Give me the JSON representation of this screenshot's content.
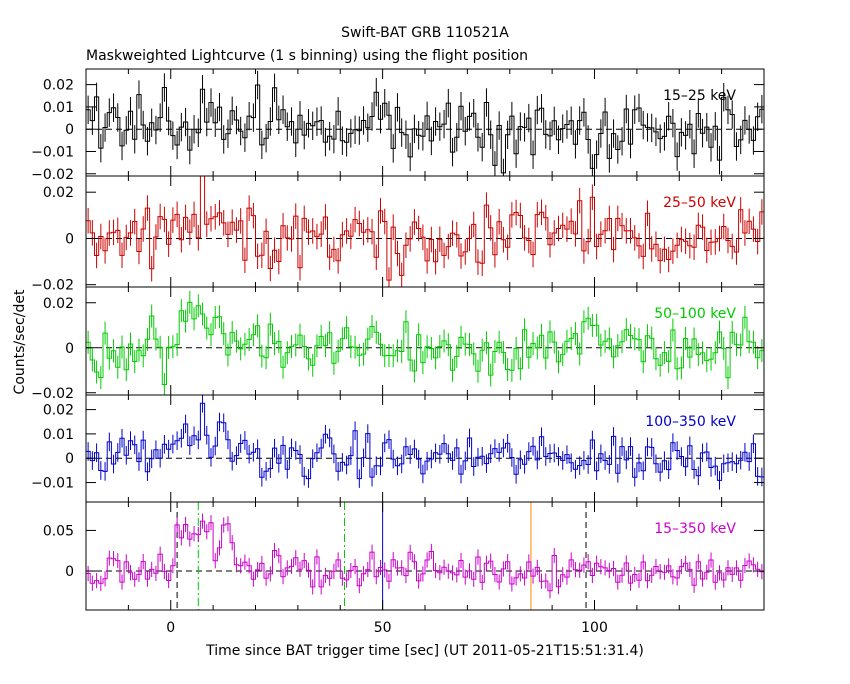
{
  "title": "Swift-BAT GRB 110521A",
  "subtitle": "Maskweighted Lightcurve (1 s binning) using the flight position",
  "ylabel": "Counts/sec/det",
  "xlabel": "Time since BAT trigger time [sec] (UT 2011-05-21T15:51:31.4)",
  "colors": {
    "frame": "#000000",
    "band1": "#000000",
    "band2": "#cc0000",
    "band3": "#00cc00",
    "band4": "#0000cc",
    "band5": "#cc00cc",
    "t90": "#00cc00",
    "t50": "#0000cc",
    "t100": "#ff8800"
  },
  "chart_data": {
    "type": "line",
    "x_range": [
      -20,
      140
    ],
    "x_ticks": [
      0,
      50,
      100
    ],
    "x_tick_labels": [
      "0",
      "50",
      "100"
    ],
    "binning_sec": 1,
    "panels": [
      {
        "name": "15-25 keV",
        "label": "15–25 keV",
        "color": "#000000",
        "ylim": [
          -0.021,
          0.027
        ],
        "yticks": [
          -0.02,
          -0.01,
          0,
          0.01,
          0.02
        ],
        "ytick_labels": [
          "−0.02",
          "−0.01",
          "0",
          "0.01",
          "0.02"
        ],
        "noise": 0.0075,
        "burst_amp": 0.003
      },
      {
        "name": "25-50 keV",
        "label": "25–50 keV",
        "color": "#cc0000",
        "ylim": [
          -0.021,
          0.027
        ],
        "yticks": [
          -0.02,
          0,
          0.02
        ],
        "ytick_labels": [
          "−0.02",
          "0",
          "0.02"
        ],
        "noise": 0.0065,
        "burst_amp": 0.014
      },
      {
        "name": "50-100 keV",
        "label": "50–100 keV",
        "color": "#00cc00",
        "ylim": [
          -0.021,
          0.027
        ],
        "yticks": [
          -0.02,
          0,
          0.02
        ],
        "ytick_labels": [
          "−0.02",
          "0",
          "0.02"
        ],
        "noise": 0.006,
        "burst_amp": 0.013
      },
      {
        "name": "100-350 keV",
        "label": "100–350 keV",
        "color": "#0000cc",
        "ylim": [
          -0.018,
          0.026
        ],
        "yticks": [
          -0.01,
          0,
          0.01,
          0.02
        ],
        "ytick_labels": [
          "−0.01",
          "0",
          "0.01",
          "0.02"
        ],
        "noise": 0.0045,
        "burst_amp": 0.01
      },
      {
        "name": "15-350 keV",
        "label": "15–350 keV",
        "color": "#cc00cc",
        "ylim": [
          -0.048,
          0.085
        ],
        "yticks": [
          0,
          0.05
        ],
        "ytick_labels": [
          "0",
          "0.05"
        ],
        "noise": 0.011,
        "burst_amp": 0.05
      }
    ],
    "burst_profile": [
      [
        -20,
        0
      ],
      [
        -1,
        0
      ],
      [
        1,
        0.55
      ],
      [
        3,
        0.95
      ],
      [
        5,
        0.8
      ],
      [
        6,
        0.7
      ],
      [
        8,
        1.0
      ],
      [
        10,
        0.6
      ],
      [
        12,
        0.75
      ],
      [
        14,
        0.7
      ],
      [
        16,
        0.45
      ],
      [
        18,
        0.2
      ],
      [
        22,
        0.05
      ],
      [
        140,
        0
      ]
    ],
    "spikes": [
      {
        "t": 7.5,
        "amps": [
          0.011,
          0.012,
          0.006,
          0.013,
          0.028
        ]
      },
      {
        "t": 99,
        "amps": [
          0.0,
          0.008,
          0.005,
          0.004,
          0.012
        ]
      }
    ],
    "markers": [
      {
        "name": "T100 start",
        "t": 1.5,
        "color": "#000000",
        "style": "dashed"
      },
      {
        "name": "T90 start",
        "t": 6.5,
        "color": "#00cc00",
        "style": "dashdot"
      },
      {
        "name": "T90 end",
        "t": 41.0,
        "color": "#00cc00",
        "style": "dashdot"
      },
      {
        "name": "T50",
        "t": 50.0,
        "color": "#0000cc",
        "style": "solid"
      },
      {
        "name": "T100 end marker",
        "t": 85.0,
        "color": "#ff8800",
        "style": "solid"
      },
      {
        "name": "T100 end",
        "t": 98.0,
        "color": "#000000",
        "style": "dashed"
      }
    ]
  }
}
